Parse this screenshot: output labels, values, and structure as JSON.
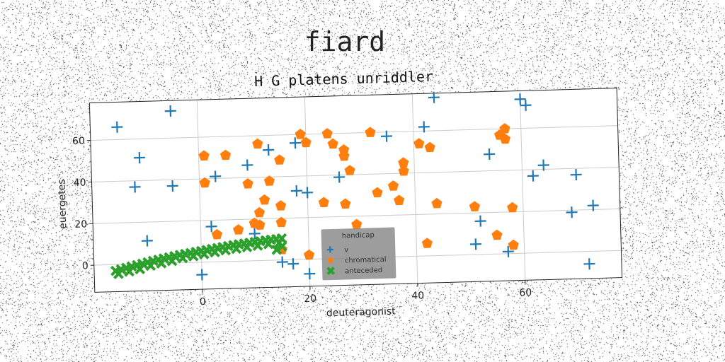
{
  "figure": {
    "suptitle": "fiard"
  },
  "colors": {
    "series_v": "#1f77b4",
    "series_chromatical": "#ff7f0e",
    "series_anteceded": "#2ca02c",
    "grid": "#cccccc",
    "legend_bg": "#8c8c8c"
  },
  "chart_data": {
    "type": "scatter",
    "title": "H G platens unriddler",
    "xlabel": "deuteragonist",
    "ylabel": "euergetes",
    "xlim": [
      -20,
      78
    ],
    "ylim": [
      -13,
      78
    ],
    "xticks": [
      0,
      20,
      40,
      60
    ],
    "yticks": [
      0,
      20,
      40,
      60
    ],
    "grid": true,
    "legend": {
      "title": "handicap",
      "placement": "lower center",
      "entries": [
        "v",
        "chromatical",
        "anteceded"
      ]
    },
    "series": [
      {
        "name": "v",
        "marker": "plus",
        "color": "#1f77b4",
        "points": [
          [
            -15,
            66
          ],
          [
            -5,
            73
          ],
          [
            -11,
            51
          ],
          [
            -12,
            37
          ],
          [
            -5,
            37
          ],
          [
            -10,
            11
          ],
          [
            3,
            41
          ],
          [
            2,
            17
          ],
          [
            0,
            -6
          ],
          [
            9,
            46
          ],
          [
            13,
            53
          ],
          [
            10,
            13
          ],
          [
            18,
            56
          ],
          [
            18,
            33
          ],
          [
            20,
            32
          ],
          [
            15,
            -1
          ],
          [
            17,
            -2
          ],
          [
            20,
            -7
          ],
          [
            26,
            39
          ],
          [
            35,
            58
          ],
          [
            42,
            62
          ],
          [
            44,
            76
          ],
          [
            52,
            16
          ],
          [
            51,
            5
          ],
          [
            54,
            48
          ],
          [
            57,
            1
          ],
          [
            60,
            74
          ],
          [
            61,
            71
          ],
          [
            62,
            37
          ],
          [
            64,
            42
          ],
          [
            70,
            37
          ],
          [
            69,
            19
          ],
          [
            73,
            22
          ],
          [
            72,
            -6
          ]
        ]
      },
      {
        "name": "chromatical",
        "marker": "pentagon",
        "color": "#ff7f0e",
        "points": [
          [
            1,
            51
          ],
          [
            5,
            51
          ],
          [
            1,
            38
          ],
          [
            3,
            13
          ],
          [
            7,
            15
          ],
          [
            9,
            37
          ],
          [
            10,
            18
          ],
          [
            11,
            17
          ],
          [
            11,
            23
          ],
          [
            11,
            56
          ],
          [
            12,
            29
          ],
          [
            13,
            38
          ],
          [
            15,
            48
          ],
          [
            15,
            26
          ],
          [
            15,
            18
          ],
          [
            15,
            5
          ],
          [
            19,
            60
          ],
          [
            20,
            56
          ],
          [
            20,
            2
          ],
          [
            24,
            60
          ],
          [
            25,
            55
          ],
          [
            23,
            27
          ],
          [
            27,
            52
          ],
          [
            27,
            49
          ],
          [
            28,
            42
          ],
          [
            27,
            26
          ],
          [
            29,
            16
          ],
          [
            32,
            60
          ],
          [
            33,
            31
          ],
          [
            36,
            34
          ],
          [
            37,
            27
          ],
          [
            38,
            45
          ],
          [
            38,
            41
          ],
          [
            41,
            54
          ],
          [
            43,
            52
          ],
          [
            42,
            6
          ],
          [
            44,
            25
          ],
          [
            51,
            23
          ],
          [
            55,
            9
          ],
          [
            56,
            57
          ],
          [
            57,
            55
          ],
          [
            58,
            22
          ],
          [
            57,
            60
          ],
          [
            58,
            4
          ]
        ]
      },
      {
        "name": "anteceded",
        "marker": "x",
        "color": "#2ca02c",
        "points": [
          [
            -16,
            -3
          ],
          [
            -15,
            -2.3
          ],
          [
            -14,
            -1.7
          ],
          [
            -13,
            -1.1
          ],
          [
            -12,
            -0.5
          ],
          [
            -11,
            0.1
          ],
          [
            -10,
            0.7
          ],
          [
            -9,
            1.3
          ],
          [
            -8,
            1.8
          ],
          [
            -7,
            2.3
          ],
          [
            -6,
            2.8
          ],
          [
            -5,
            3.3
          ],
          [
            -4,
            3.8
          ],
          [
            -3,
            4.2
          ],
          [
            -2,
            4.6
          ],
          [
            -1,
            5.0
          ],
          [
            0,
            5.4
          ],
          [
            1,
            5.8
          ],
          [
            2,
            6.2
          ],
          [
            3,
            6.6
          ],
          [
            4,
            7.0
          ],
          [
            5,
            7.4
          ],
          [
            6,
            7.8
          ],
          [
            7,
            8.1
          ],
          [
            8,
            8.4
          ],
          [
            9,
            8.7
          ],
          [
            10,
            9.0
          ],
          [
            11,
            9.3
          ],
          [
            12,
            9.6
          ],
          [
            13,
            9.9
          ],
          [
            14,
            10.1
          ],
          [
            15,
            10.3
          ],
          [
            -15.5,
            -4.5
          ],
          [
            -13.5,
            -3.5
          ],
          [
            -11.5,
            -2.5
          ],
          [
            -9.5,
            -1.0
          ],
          [
            -7.5,
            0
          ],
          [
            -5.5,
            1.0
          ],
          [
            -3.5,
            2.2
          ],
          [
            -1.5,
            3.0
          ],
          [
            0.5,
            3.8
          ],
          [
            2.5,
            4.6
          ],
          [
            4.5,
            5.4
          ],
          [
            6.5,
            6.0
          ],
          [
            8.5,
            6.6
          ],
          [
            10.5,
            7.2
          ],
          [
            12.5,
            7.8
          ],
          [
            14.5,
            8.2
          ],
          [
            15,
            6.5
          ],
          [
            14,
            5.0
          ]
        ]
      }
    ]
  }
}
